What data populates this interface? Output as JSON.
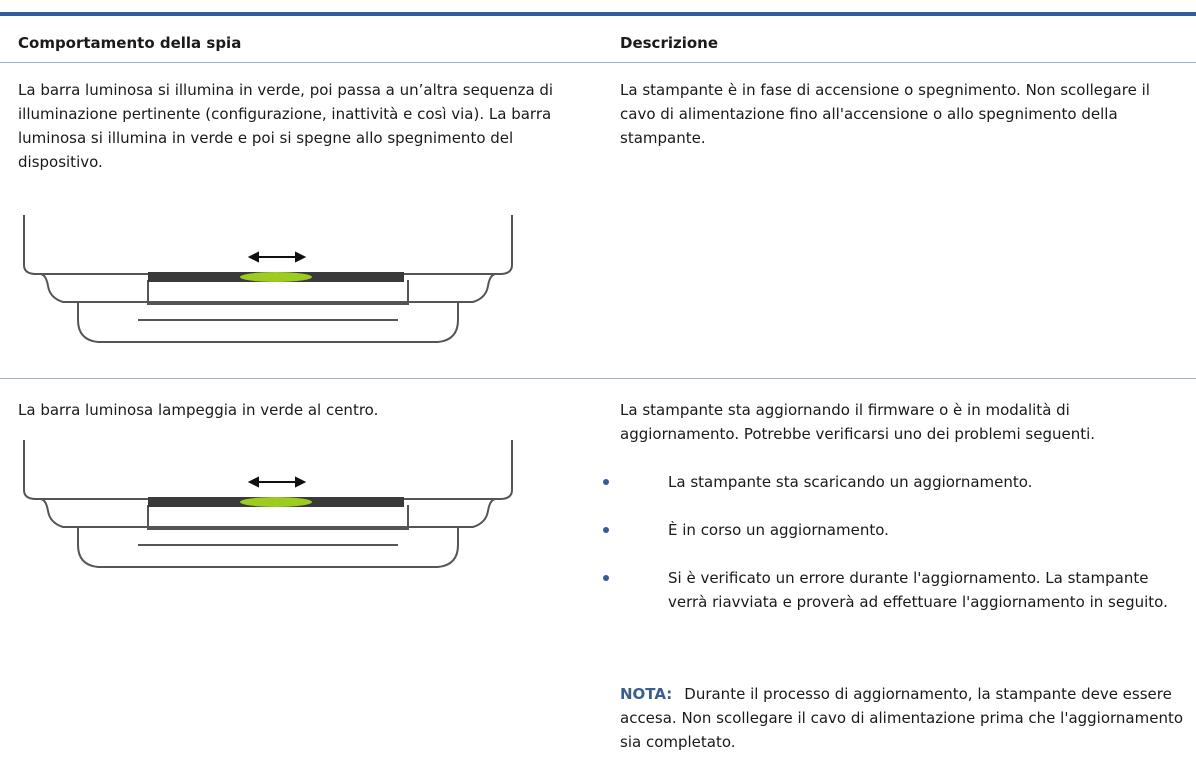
{
  "table": {
    "header": [
      "Comportamento della spia",
      "Descrizione"
    ],
    "rows": [
      {
        "behavior": "La barra luminosa si illumina in verde, poi passa a un’altra sequenza di illuminazione pertinente (configurazione, inattività e così via). La barra luminosa si illumina in verde e poi si spegne allo spegnimento del dispositivo.",
        "description": "La stampante è in fase di accensione o spegnimento. Non scollegare il cavo di alimentazione fino all'accensione o allo spegnimento della stampante."
      },
      {
        "behavior": "La barra luminosa lampeggia in verde al centro.",
        "description": "La stampante sta aggiornando il firmware o è in modalità di aggiornamento. Potrebbe verificarsi uno dei problemi seguenti.",
        "bullets": [
          "La stampante sta scaricando un aggiornamento.",
          "È in corso un aggiornamento.",
          "Si è verificato un errore durante l'aggiornamento. La stampante verrà riavviata e proverà ad effettuare l'aggiornamento in seguito."
        ],
        "note_label": "NOTA:",
        "note": "Durante il processo di aggiornamento, la stampante deve essere accesa. Non scollegare il cavo di alimentazione prima che l'aggiornamento sia completato."
      }
    ]
  }
}
